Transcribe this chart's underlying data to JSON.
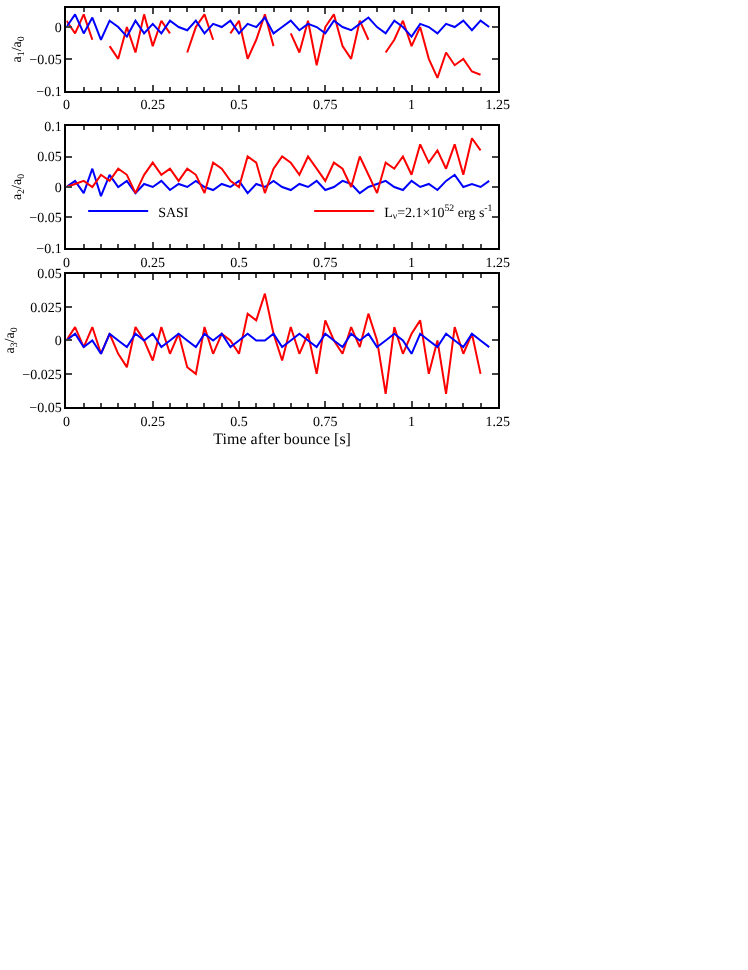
{
  "chart_data": [
    {
      "type": "line",
      "ylabel": "a$_{1}$/a$_{0}$",
      "xlim": [
        0,
        1.25
      ],
      "xticks": [
        0,
        0.25,
        0.5,
        0.75,
        1,
        1.25
      ],
      "ylim": [
        -0.1,
        0.03
      ],
      "yticks": [
        -0.1,
        -0.05,
        0
      ],
      "grid": false,
      "legend": false,
      "line_style": "solid",
      "marker": "none",
      "series": [
        {
          "color": "#ff0000",
          "x": [
            0,
            0.025,
            0.05,
            0.075,
            0.1,
            0.125,
            0.15,
            0.175,
            0.2,
            0.225,
            0.25,
            0.275,
            0.3,
            0.325,
            0.35,
            0.375,
            0.4,
            0.425,
            0.45,
            0.475,
            0.5,
            0.525,
            0.55,
            0.575,
            0.6,
            0.625,
            0.65,
            0.675,
            0.7,
            0.725,
            0.75,
            0.775,
            0.8,
            0.825,
            0.85,
            0.875,
            0.9,
            0.925,
            0.95,
            0.975,
            1,
            1.025,
            1.05,
            1.075,
            1.1,
            1.125,
            1.15,
            1.175,
            1.2
          ],
          "values": [
            0.01,
            -0.01,
            0.02,
            -0.02,
            null,
            -0.03,
            -0.05,
            0.0,
            -0.04,
            0.02,
            -0.03,
            0.01,
            -0.01,
            null,
            -0.04,
            0.0,
            0.02,
            -0.02,
            null,
            -0.01,
            0.01,
            -0.05,
            -0.02,
            0.02,
            -0.03,
            null,
            -0.01,
            -0.04,
            0.01,
            -0.06,
            0.0,
            0.02,
            -0.03,
            -0.05,
            0.01,
            -0.02,
            null,
            -0.04,
            -0.02,
            0.01,
            -0.03,
            0.0,
            -0.05,
            -0.08,
            -0.04,
            -0.06,
            -0.05,
            -0.07,
            -0.075
          ]
        },
        {
          "color": "#0000ff",
          "x": [
            0,
            0.025,
            0.05,
            0.075,
            0.1,
            0.125,
            0.15,
            0.175,
            0.2,
            0.225,
            0.25,
            0.275,
            0.3,
            0.325,
            0.35,
            0.375,
            0.4,
            0.425,
            0.45,
            0.475,
            0.5,
            0.525,
            0.55,
            0.575,
            0.6,
            0.625,
            0.65,
            0.675,
            0.7,
            0.725,
            0.75,
            0.775,
            0.8,
            0.825,
            0.85,
            0.875,
            0.9,
            0.925,
            0.95,
            0.975,
            1,
            1.025,
            1.05,
            1.075,
            1.1,
            1.125,
            1.15,
            1.175,
            1.2,
            1.225
          ],
          "values": [
            0.0,
            0.02,
            -0.01,
            0.015,
            -0.02,
            0.01,
            0.0,
            -0.015,
            0.01,
            -0.01,
            0.005,
            -0.01,
            0.01,
            0.0,
            -0.005,
            0.01,
            -0.01,
            0.005,
            0.0,
            0.01,
            -0.01,
            0.005,
            0.0,
            0.015,
            -0.01,
            0.0,
            0.01,
            -0.005,
            0.005,
            0.0,
            -0.01,
            0.01,
            0.0,
            -0.005,
            0.005,
            0.015,
            0.0,
            -0.01,
            0.01,
            0.0,
            -0.015,
            0.005,
            0.0,
            -0.01,
            0.005,
            0.0,
            0.01,
            -0.005,
            0.01,
            0.0
          ]
        }
      ]
    },
    {
      "type": "line",
      "ylabel": "a$_{2}$/a$_{0}$",
      "xlim": [
        0,
        1.25
      ],
      "xticks": [
        0,
        0.25,
        0.5,
        0.75,
        1,
        1.25
      ],
      "ylim": [
        -0.1,
        0.1
      ],
      "yticks": [
        -0.1,
        -0.05,
        0,
        0.05,
        0.1
      ],
      "grid": false,
      "legend": "bottom",
      "line_style": "solid",
      "marker": "none",
      "series": [
        {
          "name": "SASI",
          "color": "#0000ff",
          "x": [
            0,
            0.025,
            0.05,
            0.075,
            0.1,
            0.125,
            0.15,
            0.175,
            0.2,
            0.225,
            0.25,
            0.275,
            0.3,
            0.325,
            0.35,
            0.375,
            0.4,
            0.425,
            0.45,
            0.475,
            0.5,
            0.525,
            0.55,
            0.575,
            0.6,
            0.625,
            0.65,
            0.675,
            0.7,
            0.725,
            0.75,
            0.775,
            0.8,
            0.825,
            0.85,
            0.875,
            0.9,
            0.925,
            0.95,
            0.975,
            1,
            1.025,
            1.05,
            1.075,
            1.1,
            1.125,
            1.15,
            1.175,
            1.2,
            1.225
          ],
          "values": [
            0.0,
            0.01,
            -0.01,
            0.03,
            -0.015,
            0.02,
            0.0,
            0.01,
            -0.01,
            0.005,
            0.0,
            0.01,
            -0.005,
            0.005,
            0.0,
            0.01,
            0.0,
            -0.005,
            0.005,
            0.0,
            0.01,
            -0.01,
            0.005,
            0.0,
            0.01,
            0.0,
            -0.005,
            0.005,
            0.0,
            0.01,
            -0.005,
            0.0,
            0.01,
            0.005,
            -0.01,
            0.0,
            0.005,
            0.01,
            0.0,
            -0.005,
            0.01,
            0.0,
            0.005,
            -0.005,
            0.01,
            0.02,
            0.0,
            0.005,
            0.0,
            0.01
          ]
        },
        {
          "name": "L$_{ν}$=2.1×10$^{52}$ erg s$^{-1}$",
          "color": "#ff0000",
          "x": [
            0,
            0.025,
            0.05,
            0.075,
            0.1,
            0.125,
            0.15,
            0.175,
            0.2,
            0.225,
            0.25,
            0.275,
            0.3,
            0.325,
            0.35,
            0.375,
            0.4,
            0.425,
            0.45,
            0.475,
            0.5,
            0.525,
            0.55,
            0.575,
            0.6,
            0.625,
            0.65,
            0.675,
            0.7,
            0.725,
            0.75,
            0.775,
            0.8,
            0.825,
            0.85,
            0.875,
            0.9,
            0.925,
            0.95,
            0.975,
            1,
            1.025,
            1.05,
            1.075,
            1.1,
            1.125,
            1.15,
            1.175,
            1.2
          ],
          "values": [
            0.0,
            0.005,
            0.01,
            0.0,
            0.02,
            0.01,
            0.03,
            0.02,
            -0.01,
            0.02,
            0.04,
            0.02,
            0.03,
            0.01,
            0.03,
            0.02,
            -0.01,
            0.04,
            0.03,
            0.01,
            0.0,
            0.05,
            0.04,
            -0.01,
            0.03,
            0.05,
            0.04,
            0.02,
            0.05,
            0.03,
            0.01,
            0.04,
            0.03,
            0.0,
            0.05,
            0.02,
            -0.01,
            0.04,
            0.03,
            0.05,
            0.02,
            0.07,
            0.04,
            0.06,
            0.03,
            0.07,
            0.02,
            0.08,
            0.06
          ]
        }
      ]
    },
    {
      "type": "line",
      "ylabel": "a$_{3}$/a$_{0}$",
      "xlabel": "Time after bounce [s]",
      "xlim": [
        0,
        1.25
      ],
      "xticks": [
        0,
        0.25,
        0.5,
        0.75,
        1,
        1.25
      ],
      "ylim": [
        -0.05,
        0.05
      ],
      "yticks": [
        -0.05,
        -0.025,
        0,
        0.025,
        0.05
      ],
      "grid": false,
      "legend": false,
      "line_style": "solid",
      "marker": "none",
      "series": [
        {
          "color": "#ff0000",
          "x": [
            0,
            0.025,
            0.05,
            0.075,
            0.1,
            0.125,
            0.15,
            0.175,
            0.2,
            0.225,
            0.25,
            0.275,
            0.3,
            0.325,
            0.35,
            0.375,
            0.4,
            0.425,
            0.45,
            0.475,
            0.5,
            0.525,
            0.55,
            0.575,
            0.6,
            0.625,
            0.65,
            0.675,
            0.7,
            0.725,
            0.75,
            0.775,
            0.8,
            0.825,
            0.85,
            0.875,
            0.9,
            0.925,
            0.95,
            0.975,
            1,
            1.025,
            1.05,
            1.075,
            1.1,
            1.125,
            1.15,
            1.175,
            1.2
          ],
          "values": [
            0.0,
            0.01,
            -0.005,
            0.01,
            -0.01,
            0.005,
            -0.01,
            -0.02,
            0.01,
            0.0,
            -0.015,
            0.01,
            -0.01,
            0.005,
            -0.02,
            -0.025,
            0.01,
            -0.01,
            0.005,
            0.0,
            -0.01,
            0.02,
            0.015,
            0.035,
            0.005,
            -0.015,
            0.01,
            -0.01,
            0.005,
            -0.025,
            0.015,
            0.0,
            -0.01,
            0.01,
            -0.005,
            0.02,
            0.0,
            -0.04,
            0.01,
            -0.01,
            0.005,
            0.015,
            -0.025,
            0.0,
            -0.04,
            0.01,
            -0.01,
            0.005,
            -0.025
          ]
        },
        {
          "color": "#0000ff",
          "x": [
            0,
            0.025,
            0.05,
            0.075,
            0.1,
            0.125,
            0.15,
            0.175,
            0.2,
            0.225,
            0.25,
            0.275,
            0.3,
            0.325,
            0.35,
            0.375,
            0.4,
            0.425,
            0.45,
            0.475,
            0.5,
            0.525,
            0.55,
            0.575,
            0.6,
            0.625,
            0.65,
            0.675,
            0.7,
            0.725,
            0.75,
            0.775,
            0.8,
            0.825,
            0.85,
            0.875,
            0.9,
            0.925,
            0.95,
            0.975,
            1,
            1.025,
            1.05,
            1.075,
            1.1,
            1.125,
            1.15,
            1.175,
            1.2,
            1.225
          ],
          "values": [
            0.0,
            0.005,
            -0.005,
            0.0,
            -0.01,
            0.005,
            0.0,
            -0.005,
            0.005,
            0.0,
            0.005,
            -0.005,
            0.0,
            0.005,
            0.0,
            -0.005,
            0.005,
            0.0,
            0.005,
            -0.005,
            0.0,
            0.005,
            0.0,
            0.0,
            0.005,
            -0.005,
            0.0,
            0.005,
            0.0,
            -0.005,
            0.005,
            0.0,
            -0.005,
            0.005,
            0.0,
            0.005,
            -0.005,
            0.0,
            0.005,
            0.0,
            -0.01,
            0.005,
            0.0,
            -0.005,
            0.005,
            0.0,
            -0.005,
            0.005,
            0.0,
            -0.005
          ]
        }
      ]
    }
  ]
}
